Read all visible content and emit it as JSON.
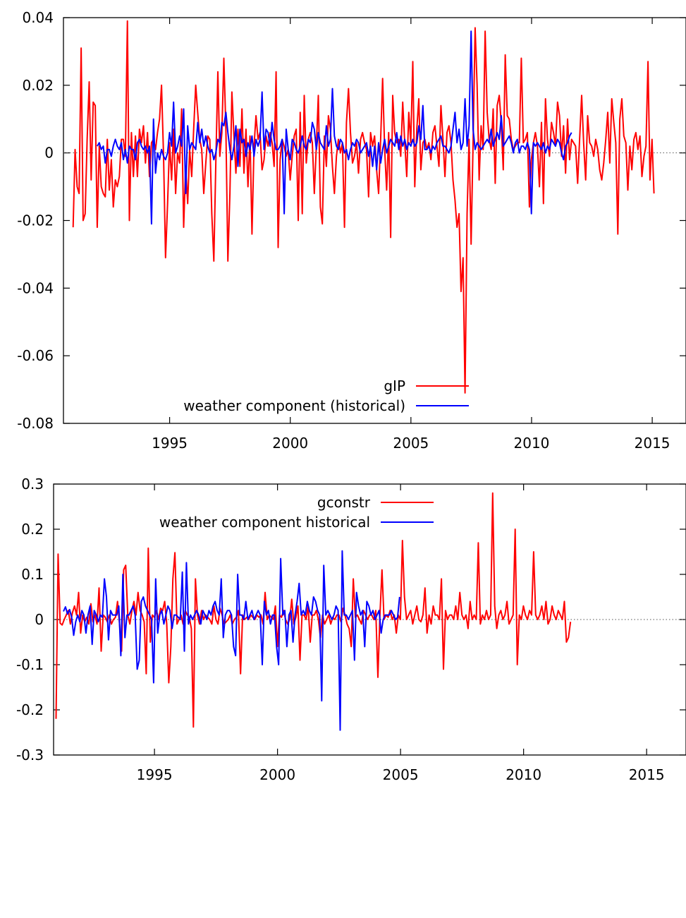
{
  "chart_data": [
    {
      "type": "line",
      "title": "",
      "xlabel": "",
      "ylabel": "",
      "xlim": [
        1990.6,
        2016.4
      ],
      "ylim": [
        -0.08,
        0.04
      ],
      "x_ticks": [
        1995,
        2000,
        2005,
        2010,
        2015
      ],
      "y_ticks": [
        0.04,
        0.02,
        0,
        -0.02,
        -0.04,
        -0.06,
        -0.08
      ],
      "y_tick_labels": [
        "0.04",
        "0.02",
        "0",
        "-0.02",
        "-0.04",
        "-0.06",
        "-0.08"
      ],
      "zero_line": true,
      "grid": false,
      "legend": "bottom-center",
      "series": [
        {
          "name": "gIP",
          "color": "#ff0000",
          "x_start": 1991.0,
          "x_step": 0.0833,
          "values": [
            -0.022,
            0.001,
            -0.01,
            -0.012,
            0.031,
            -0.02,
            -0.018,
            0.004,
            0.021,
            -0.008,
            0.015,
            0.014,
            -0.022,
            0.002,
            -0.01,
            -0.012,
            -0.013,
            0.004,
            -0.011,
            -0.002,
            -0.016,
            -0.008,
            -0.01,
            -0.007,
            0.004,
            0.004,
            -0.001,
            0.039,
            -0.02,
            0.006,
            -0.007,
            0.005,
            -0.007,
            0.007,
            0.003,
            0.008,
            -0.003,
            0.006,
            -0.007,
            0.003,
            0.004,
            0.001,
            0.006,
            0.01,
            0.02,
            -0.001,
            -0.031,
            -0.015,
            0.003,
            -0.008,
            0.007,
            -0.012,
            0.0,
            -0.003,
            0.013,
            -0.022,
            -0.004,
            -0.015,
            0.001,
            -0.007,
            0.007,
            0.02,
            0.012,
            0.004,
            0.001,
            -0.012,
            -0.003,
            0.005,
            0.004,
            -0.018,
            -0.032,
            -0.003,
            0.024,
            -0.001,
            0.006,
            0.028,
            0.007,
            -0.032,
            -0.012,
            0.018,
            0.005,
            -0.006,
            0.007,
            -0.004,
            0.013,
            -0.006,
            0.007,
            -0.01,
            0.005,
            -0.024,
            0.002,
            0.011,
            0.004,
            0.006,
            -0.005,
            -0.002,
            0.005,
            0.002,
            0.006,
            0.003,
            -0.004,
            0.024,
            -0.028,
            -0.002,
            0.004,
            0.002,
            -0.001,
            0.001,
            -0.008,
            -0.001,
            0.005,
            0.007,
            -0.02,
            0.012,
            -0.018,
            0.017,
            -0.003,
            0.004,
            0.006,
            0.003,
            -0.012,
            0.002,
            0.017,
            -0.016,
            -0.021,
            0.005,
            -0.004,
            0.011,
            0.007,
            -0.004,
            -0.012,
            -0.001,
            0.004,
            0.0,
            0.003,
            -0.022,
            0.009,
            0.019,
            0.006,
            -0.003,
            -0.001,
            0.003,
            -0.006,
            0.004,
            0.006,
            0.003,
            0.001,
            -0.013,
            0.006,
            0.002,
            0.005,
            -0.005,
            -0.012,
            0.004,
            0.022,
            0.001,
            -0.011,
            0.006,
            -0.025,
            0.017,
            0.006,
            0.003,
            0.004,
            -0.001,
            0.015,
            0.003,
            -0.007,
            0.012,
            0.003,
            0.027,
            -0.01,
            0.007,
            0.016,
            -0.005,
            0.003,
            0.004,
            0.001,
            0.003,
            -0.002,
            0.006,
            0.008,
            0.002,
            -0.004,
            0.014,
            0.004,
            -0.007,
            0.006,
            0.008,
            0.003,
            -0.008,
            -0.014,
            -0.022,
            -0.018,
            -0.041,
            -0.031,
            -0.071,
            -0.018,
            0.004,
            -0.027,
            0.003,
            0.037,
            0.02,
            -0.008,
            0.008,
            0.001,
            0.036,
            0.012,
            0.004,
            0.001,
            0.013,
            -0.009,
            0.014,
            0.017,
            0.009,
            -0.005,
            0.029,
            0.011,
            0.01,
            0.004,
            0.001,
            0.002,
            0.003,
            0.003,
            0.028,
            0.003,
            0.004,
            0.006,
            -0.016,
            -0.002,
            0.003,
            0.006,
            0.002,
            -0.01,
            0.009,
            -0.015,
            0.016,
            0.004,
            -0.001,
            0.009,
            0.006,
            0.002,
            0.015,
            0.011,
            -0.001,
            0.008,
            -0.006,
            0.01,
            -0.002,
            0.004,
            0.003,
            0.002,
            -0.009,
            0.004,
            0.017,
            0.003,
            -0.008,
            0.011,
            0.003,
            0.002,
            -0.001,
            0.004,
            0.001,
            -0.005,
            -0.008,
            -0.003,
            0.004,
            0.012,
            -0.003,
            0.016,
            0.009,
            0.003,
            -0.024,
            0.01,
            0.016,
            0.005,
            0.003,
            -0.011,
            0.002,
            -0.005,
            0.004,
            0.006,
            0.001,
            0.005,
            -0.007,
            -0.001,
            0.002,
            0.027,
            -0.008,
            0.004,
            -0.012
          ],
          "note_values_monthly": true
        },
        {
          "name": "weather component (historical)",
          "color": "#0000ff",
          "x_start": 1992.0,
          "x_step": 0.0833,
          "values": [
            0.002,
            0.003,
            0.001,
            0.002,
            -0.003,
            0.001,
            0.001,
            -0.001,
            0.002,
            0.004,
            0.002,
            0.001,
            0.003,
            -0.002,
            0.001,
            -0.003,
            0.002,
            0.001,
            0.001,
            -0.002,
            0.003,
            0.004,
            0.002,
            0.001,
            0.002,
            0.0,
            0.002,
            -0.021,
            0.01,
            -0.006,
            0.0,
            -0.002,
            0.001,
            -0.001,
            -0.002,
            0.0,
            0.006,
            0.002,
            0.015,
            0.0,
            0.002,
            0.005,
            0.002,
            0.013,
            -0.012,
            0.008,
            0.001,
            0.003,
            0.002,
            0.001,
            0.009,
            0.003,
            0.007,
            0.002,
            0.005,
            0.002,
            0.0,
            0.001,
            -0.002,
            0.0,
            0.004,
            0.003,
            0.009,
            0.008,
            0.012,
            0.006,
            0.001,
            -0.002,
            0.002,
            0.008,
            -0.004,
            0.007,
            0.003,
            0.004,
            -0.001,
            0.003,
            0.001,
            0.005,
            -0.001,
            0.004,
            0.002,
            0.004,
            0.018,
            0.001,
            0.007,
            0.006,
            0.002,
            0.009,
            0.004,
            0.001,
            0.001,
            0.002,
            0.004,
            -0.018,
            0.007,
            0.001,
            -0.002,
            0.004,
            0.003,
            0.001,
            0.0,
            0.002,
            0.005,
            0.002,
            0.001,
            0.004,
            0.003,
            0.009,
            0.007,
            0.001,
            0.006,
            0.003,
            0.002,
            0.001,
            0.008,
            0.002,
            0.004,
            0.019,
            0.005,
            0.002,
            0.001,
            0.004,
            0.003,
            0.0,
            0.001,
            -0.002,
            0.001,
            0.003,
            0.002,
            0.004,
            0.003,
            0.0,
            0.001,
            0.002,
            0.003,
            -0.001,
            0.002,
            -0.004,
            0.002,
            -0.005,
            0.003,
            -0.003,
            0.001,
            0.004,
            0.0,
            0.002,
            0.004,
            0.003,
            0.002,
            0.006,
            0.001,
            0.005,
            0.002,
            0.004,
            0.001,
            0.003,
            0.002,
            0.004,
            0.002,
            0.003,
            0.008,
            0.004,
            0.014,
            0.001,
            0.001,
            0.002,
            0.0,
            0.002,
            0.001,
            0.003,
            0.004,
            0.005,
            0.002,
            0.002,
            0.001,
            0.0,
            0.002,
            0.007,
            0.012,
            0.003,
            0.007,
            0.001,
            0.003,
            0.016,
            0.002,
            0.008,
            0.036,
            0.007,
            0.001,
            0.003,
            0.002,
            0.001,
            0.002,
            0.003,
            0.004,
            0.003,
            0.007,
            0.002,
            0.004,
            0.006,
            0.004,
            0.011,
            0.002,
            0.003,
            0.004,
            0.005,
            0.003,
            0.0,
            0.003,
            0.004,
            0.0,
            0.002,
            0.002,
            0.001,
            0.003,
            0.001,
            -0.018,
            0.003,
            0.002,
            0.003,
            0.002,
            0.001,
            0.003,
            0.0,
            0.002,
            0.001,
            0.004,
            0.003,
            0.002,
            0.004,
            0.003,
            0.0,
            -0.002,
            0.002,
            0.003,
            0.005,
            0.006
          ],
          "note_values_monthly": true
        }
      ]
    },
    {
      "type": "line",
      "title": "",
      "xlabel": "",
      "ylabel": "",
      "xlim": [
        1990.9,
        2016.6
      ],
      "ylim": [
        -0.3,
        0.3
      ],
      "x_ticks": [
        1995,
        2000,
        2005,
        2010,
        2015
      ],
      "y_ticks": [
        0.3,
        0.2,
        0.1,
        0,
        -0.1,
        -0.2,
        -0.3
      ],
      "y_tick_labels": [
        "0.3",
        "0.2",
        "0.1",
        "0",
        "-0.1",
        "-0.2",
        "-0.3"
      ],
      "zero_line": true,
      "grid": false,
      "legend": "top-center",
      "series": [
        {
          "name": "gconstr",
          "color": "#ff0000",
          "x_start": 1991.0,
          "x_step": 0.0833,
          "values": [
            -0.22,
            0.145,
            -0.008,
            -0.012,
            0.0,
            0.01,
            0.02,
            -0.01,
            0.015,
            0.03,
            0.01,
            0.06,
            -0.03,
            0.01,
            -0.005,
            0.005,
            -0.01,
            0.035,
            -0.005,
            0.01,
            -0.01,
            0.07,
            -0.07,
            0.01,
            0.005,
            -0.005,
            0.01,
            -0.01,
            0.0,
            0.005,
            0.04,
            -0.01,
            -0.07,
            0.11,
            0.12,
            0.01,
            -0.01,
            0.02,
            0.04,
            0.01,
            0.06,
            0.02,
            0.01,
            -0.005,
            -0.12,
            0.158,
            -0.05,
            0.01,
            0.005,
            0.02,
            0.0,
            0.025,
            0.02,
            0.04,
            -0.01,
            -0.14,
            -0.06,
            0.09,
            0.148,
            -0.01,
            0.0,
            0.01,
            -0.01,
            0.02,
            0.01,
            0.005,
            -0.02,
            -0.238,
            0.09,
            0.01,
            -0.01,
            0.02,
            0.0,
            0.01,
            0.005,
            0.0,
            -0.01,
            0.03,
            0.0,
            -0.01,
            0.025,
            0.01,
            -0.01,
            -0.005,
            0.0,
            0.01,
            -0.01,
            0.0,
            0.005,
            0.02,
            -0.12,
            0.01,
            0.0,
            0.005,
            0.0,
            0.01,
            0.005,
            0.0,
            0.01,
            0.005,
            0.01,
            -0.01,
            0.06,
            0.0,
            0.01,
            0.005,
            0.0,
            0.03,
            -0.06,
            0.01,
            0.005,
            0.02,
            0.0,
            -0.01,
            0.0,
            0.045,
            -0.01,
            0.005,
            0.03,
            -0.09,
            0.01,
            0.01,
            0.0,
            0.03,
            -0.05,
            0.01,
            0.01,
            0.02,
            0.0,
            -0.04,
            0.01,
            -0.01,
            0.0,
            0.01,
            -0.01,
            0.005,
            0.0,
            0.01,
            0.01,
            -0.005,
            0.025,
            0.01,
            -0.01,
            -0.02,
            -0.06,
            0.09,
            0.005,
            0.01,
            0.0,
            -0.01,
            0.02,
            0.01,
            0.0,
            0.01,
            0.01,
            0.0,
            0.02,
            -0.128,
            0.01,
            0.11,
            0.0,
            0.01,
            0.005,
            0.02,
            0.0,
            0.01,
            -0.03,
            0.01,
            0.0,
            0.175,
            0.05,
            0.0,
            0.01,
            0.02,
            -0.01,
            0.01,
            0.03,
            0.0,
            -0.005,
            0.01,
            0.07,
            -0.03,
            0.01,
            -0.01,
            0.03,
            0.01,
            0.01,
            0.0,
            0.09,
            -0.11,
            0.02,
            0.0,
            0.01,
            0.01,
            0.0,
            0.03,
            0.0,
            0.06,
            0.01,
            0.0,
            0.01,
            -0.02,
            0.04,
            0.0,
            0.01,
            0.0,
            0.17,
            -0.01,
            0.01,
            0.0,
            0.02,
            0.0,
            0.01,
            0.28,
            0.03,
            -0.02,
            0.01,
            0.02,
            0.0,
            0.01,
            0.04,
            -0.01,
            0.0,
            0.01,
            0.2,
            -0.1,
            0.01,
            0.0,
            0.03,
            0.01,
            0.0,
            0.02,
            0.01,
            0.15,
            0.01,
            0.0,
            0.01,
            0.03,
            0.0,
            0.04,
            -0.01,
            0.0,
            0.03,
            0.01,
            0.0,
            0.02,
            0.01,
            0.0,
            0.04,
            -0.05,
            -0.04,
            -0.005
          ],
          "note_values_monthly": true
        },
        {
          "name": "weather component historical",
          "color": "#0000ff",
          "x_start": 1991.3,
          "x_step": 0.0833,
          "values": [
            0.018,
            0.028,
            0.012,
            0.022,
            0.005,
            -0.035,
            -0.005,
            0.01,
            -0.005,
            0.02,
            0.01,
            -0.03,
            0.01,
            0.03,
            -0.055,
            0.02,
            0.01,
            -0.005,
            0.01,
            0.005,
            0.09,
            0.05,
            -0.045,
            0.02,
            0.01,
            0.01,
            0.01,
            0.03,
            -0.08,
            0.1,
            -0.04,
            0.01,
            0.01,
            0.02,
            0.03,
            0.01,
            -0.11,
            -0.09,
            0.04,
            0.05,
            0.03,
            0.02,
            0.01,
            0.0,
            -0.14,
            0.09,
            -0.03,
            0.01,
            0.02,
            -0.01,
            0.01,
            0.03,
            0.02,
            -0.02,
            0.01,
            0.01,
            0.005,
            0.0,
            0.105,
            -0.07,
            0.126,
            -0.01,
            0.01,
            0.0,
            0.01,
            0.02,
            0.01,
            -0.01,
            0.02,
            0.01,
            0.0,
            0.02,
            0.01,
            0.03,
            0.04,
            0.02,
            0.01,
            0.09,
            -0.04,
            0.01,
            0.02,
            0.02,
            0.01,
            -0.06,
            -0.08,
            0.1,
            0.01,
            0.01,
            0.0,
            0.04,
            0.0,
            0.01,
            0.02,
            0.0,
            0.01,
            0.02,
            0.01,
            -0.1,
            0.04,
            0.01,
            0.02,
            -0.01,
            0.01,
            0.01,
            -0.06,
            -0.1,
            0.135,
            0.01,
            0.02,
            -0.06,
            0.01,
            0.02,
            -0.05,
            0.01,
            0.04,
            0.08,
            0.01,
            0.02,
            0.01,
            0.04,
            0.02,
            0.01,
            0.05,
            0.04,
            0.02,
            0.01,
            -0.18,
            0.12,
            0.01,
            0.02,
            0.01,
            0.0,
            0.01,
            0.03,
            0.02,
            -0.245,
            0.152,
            0.01,
            0.01,
            0.0,
            0.01,
            0.02,
            -0.09,
            0.06,
            0.03,
            0.01,
            0.02,
            -0.06,
            0.04,
            0.03,
            0.01,
            0.02,
            0.0,
            0.01,
            0.02,
            -0.03,
            0.0,
            0.01,
            0.01,
            0.01,
            0.02,
            0.01,
            0.0,
            0.005,
            0.05
          ],
          "note_values_monthly": true
        }
      ]
    }
  ]
}
